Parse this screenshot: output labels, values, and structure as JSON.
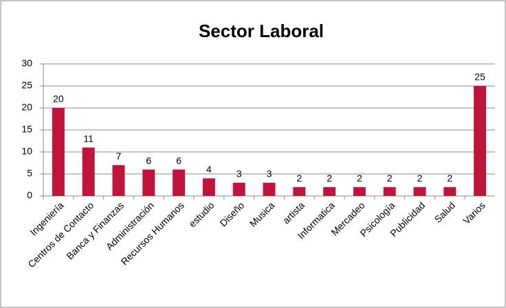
{
  "chart_data": {
    "type": "bar",
    "title": "Sector Laboral",
    "categories": [
      "Ingeniería",
      "Centros de Contacto",
      "Banca y Finanzas",
      "Administración",
      "Recursos Humanos",
      "estudio",
      "Diseño",
      "Musica",
      "artista",
      "Informatica",
      "Mercadeo",
      "Psicología",
      "Publicidad",
      "Salud",
      "Varios"
    ],
    "values": [
      20,
      11,
      7,
      6,
      6,
      4,
      3,
      3,
      2,
      2,
      2,
      2,
      2,
      2,
      25
    ],
    "color": "#c0143c",
    "ylim": [
      0,
      30
    ],
    "yticks": [
      0,
      5,
      10,
      15,
      20,
      25,
      30
    ],
    "grid": true
  }
}
